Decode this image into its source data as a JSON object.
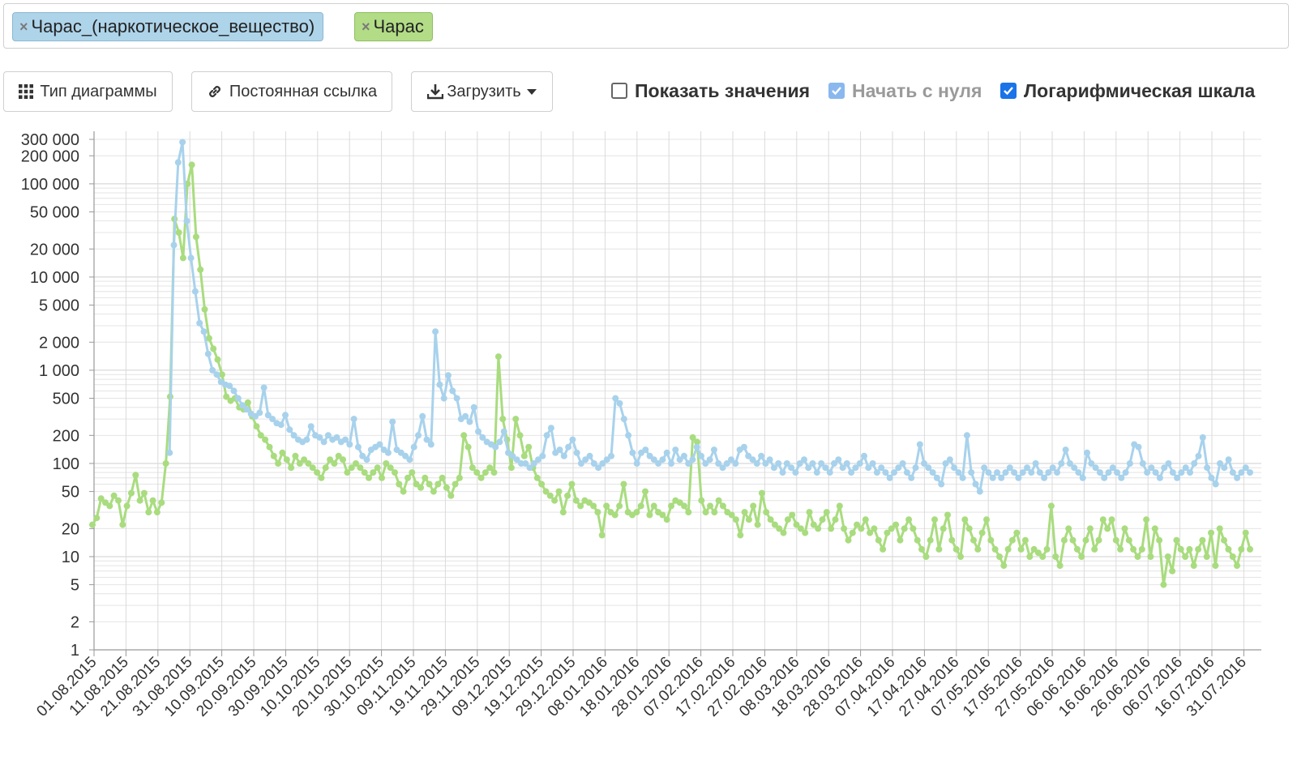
{
  "tags": [
    {
      "label": "Чарас_(наркотическое_вещество)",
      "color": "#aed4ea"
    },
    {
      "label": "Чарас",
      "color": "#b2dc86"
    }
  ],
  "toolbar": {
    "chart_type_label": "Тип диаграммы",
    "permalink_label": "Постоянная ссылка",
    "download_label": "Загрузить"
  },
  "options": {
    "show_values": {
      "label": "Показать значения",
      "checked": false
    },
    "start_zero": {
      "label": "Начать с нуля",
      "checked": true,
      "disabled": true
    },
    "log_scale": {
      "label": "Логарифмическая шкала",
      "checked": true
    }
  },
  "chart_data": {
    "type": "line",
    "y_scale": "log",
    "ylim": [
      1,
      300000
    ],
    "y_ticks": [
      1,
      2,
      5,
      10,
      20,
      50,
      100,
      200,
      500,
      1000,
      2000,
      5000,
      10000,
      20000,
      50000,
      100000,
      200000,
      300000
    ],
    "y_tick_labels": [
      "1",
      "2",
      "5",
      "10",
      "20",
      "50",
      "100",
      "200",
      "500",
      "1 000",
      "2 000",
      "5 000",
      "10 000",
      "20 000",
      "50 000",
      "100 000",
      "200 000",
      "300 000"
    ],
    "x_tick_labels": [
      "01.08.2015",
      "11.08.2015",
      "21.08.2015",
      "31.08.2015",
      "10.09.2015",
      "20.09.2015",
      "30.09.2015",
      "10.10.2015",
      "20.10.2015",
      "30.10.2015",
      "09.11.2015",
      "19.11.2015",
      "29.11.2015",
      "09.12.2015",
      "19.12.2015",
      "29.12.2015",
      "08.01.2016",
      "18.01.2016",
      "28.01.2016",
      "07.02.2016",
      "17.02.2016",
      "27.02.2016",
      "08.03.2016",
      "18.03.2016",
      "28.03.2016",
      "07.04.2016",
      "17.04.2016",
      "27.04.2016",
      "07.05.2016",
      "17.05.2016",
      "27.05.2016",
      "06.06.2016",
      "16.06.2016",
      "26.06.2016",
      "06.07.2016",
      "16.07.2016",
      "31.07.2016"
    ],
    "grid": true,
    "series": [
      {
        "name": "Чарас_(наркотическое_вещество)",
        "color": "#a8d2ec",
        "values": [
          130,
          22000,
          170000,
          280000,
          40000,
          16000,
          7000,
          3200,
          2600,
          1500,
          1000,
          900,
          750,
          700,
          680,
          600,
          500,
          420,
          380,
          340,
          320,
          350,
          650,
          330,
          300,
          270,
          260,
          330,
          230,
          200,
          180,
          170,
          180,
          250,
          200,
          190,
          170,
          200,
          180,
          190,
          170,
          180,
          160,
          300,
          150,
          120,
          110,
          140,
          150,
          160,
          140,
          130,
          280,
          140,
          130,
          120,
          110,
          150,
          200,
          320,
          180,
          160,
          2600,
          700,
          500,
          880,
          600,
          500,
          300,
          320,
          280,
          400,
          220,
          190,
          170,
          160,
          150,
          170,
          220,
          130,
          120,
          110,
          100,
          100,
          90,
          100,
          110,
          120,
          200,
          240,
          130,
          140,
          120,
          150,
          180,
          130,
          100,
          110,
          120,
          100,
          90,
          100,
          110,
          120,
          500,
          440,
          300,
          200,
          130,
          100,
          130,
          140,
          120,
          110,
          100,
          110,
          130,
          100,
          140,
          110,
          120,
          100,
          110,
          150,
          120,
          100,
          110,
          140,
          100,
          90,
          100,
          110,
          100,
          140,
          150,
          120,
          110,
          100,
          120,
          100,
          110,
          90,
          100,
          80,
          100,
          90,
          80,
          100,
          110,
          90,
          100,
          80,
          100,
          90,
          80,
          100,
          110,
          90,
          100,
          80,
          90,
          100,
          120,
          90,
          100,
          80,
          90,
          80,
          70,
          80,
          90,
          100,
          80,
          70,
          90,
          160,
          100,
          90,
          80,
          70,
          60,
          100,
          110,
          90,
          80,
          70,
          200,
          80,
          60,
          50,
          90,
          80,
          70,
          80,
          70,
          80,
          90,
          80,
          70,
          80,
          90,
          80,
          100,
          80,
          70,
          80,
          90,
          80,
          100,
          140,
          100,
          90,
          80,
          70,
          130,
          100,
          90,
          80,
          70,
          80,
          90,
          80,
          70,
          80,
          100,
          160,
          150,
          100,
          80,
          90,
          80,
          70,
          90,
          100,
          80,
          70,
          80,
          90,
          80,
          100,
          120,
          190,
          90,
          70,
          60,
          100,
          90,
          110,
          80,
          70,
          80,
          90,
          80
        ]
      },
      {
        "name": "Чарас",
        "color": "#a9dc7f",
        "values": [
          22,
          26,
          42,
          38,
          35,
          45,
          40,
          22,
          35,
          48,
          75,
          40,
          48,
          30,
          40,
          30,
          38,
          100,
          520,
          42000,
          30000,
          16000,
          100000,
          160000,
          27000,
          12000,
          4500,
          2200,
          1700,
          1300,
          900,
          520,
          470,
          500,
          400,
          380,
          450,
          320,
          250,
          200,
          180,
          150,
          120,
          100,
          130,
          110,
          90,
          120,
          100,
          110,
          100,
          90,
          80,
          70,
          90,
          110,
          100,
          120,
          110,
          80,
          90,
          100,
          90,
          80,
          70,
          80,
          90,
          70,
          100,
          90,
          80,
          60,
          50,
          70,
          80,
          60,
          55,
          70,
          60,
          50,
          60,
          70,
          55,
          45,
          60,
          70,
          200,
          150,
          90,
          80,
          70,
          80,
          90,
          80,
          1400,
          300,
          180,
          90,
          300,
          200,
          120,
          150,
          90,
          70,
          60,
          50,
          45,
          40,
          50,
          30,
          45,
          60,
          40,
          35,
          40,
          38,
          35,
          30,
          17,
          35,
          30,
          28,
          35,
          60,
          30,
          28,
          30,
          35,
          50,
          28,
          35,
          30,
          28,
          25,
          35,
          40,
          38,
          35,
          30,
          190,
          170,
          40,
          30,
          35,
          30,
          40,
          35,
          30,
          28,
          25,
          17,
          30,
          25,
          35,
          22,
          48,
          30,
          25,
          22,
          20,
          18,
          25,
          28,
          22,
          20,
          18,
          30,
          22,
          20,
          25,
          30,
          20,
          25,
          35,
          20,
          15,
          18,
          22,
          20,
          25,
          18,
          20,
          15,
          12,
          18,
          20,
          22,
          15,
          20,
          25,
          20,
          15,
          12,
          10,
          15,
          25,
          12,
          20,
          28,
          15,
          12,
          10,
          25,
          20,
          15,
          12,
          18,
          25,
          15,
          12,
          10,
          8,
          12,
          15,
          18,
          12,
          15,
          10,
          12,
          11,
          10,
          12,
          35,
          10,
          8,
          15,
          20,
          15,
          12,
          10,
          15,
          20,
          12,
          15,
          25,
          20,
          25,
          15,
          12,
          20,
          15,
          12,
          10,
          12,
          25,
          10,
          20,
          15,
          5,
          10,
          7,
          15,
          12,
          10,
          12,
          8,
          12,
          15,
          10,
          18,
          8,
          20,
          15,
          12,
          10,
          8,
          12,
          18,
          12
        ]
      }
    ]
  }
}
